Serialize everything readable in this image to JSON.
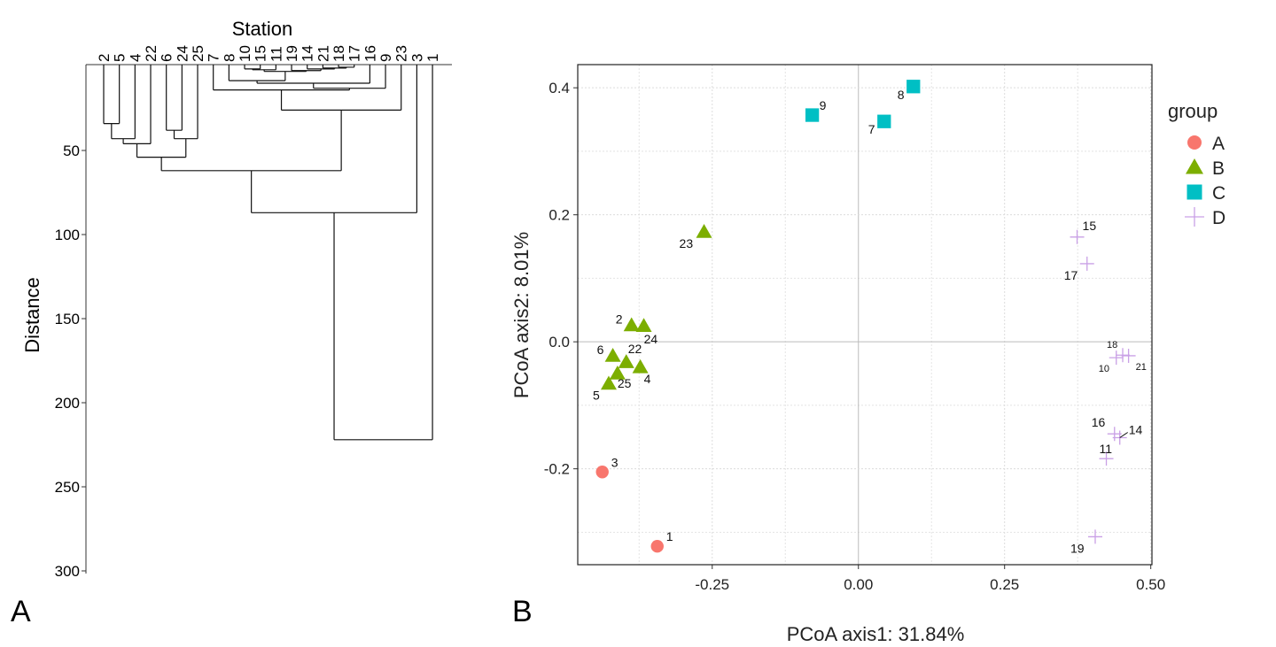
{
  "panels": {
    "left_label": "A",
    "right_label": "B"
  },
  "chart_data": [
    {
      "type": "dendrogram",
      "title": "Station",
      "ylabel": "Distance",
      "ylim": [
        0,
        300
      ],
      "yticks": [
        "50",
        "100",
        "150",
        "200",
        "250",
        "300"
      ],
      "ytick_values": [
        50,
        100,
        150,
        200,
        250,
        300
      ],
      "leaves": [
        "2",
        "5",
        "4",
        "22",
        "6",
        "24",
        "25",
        "7",
        "8",
        "10",
        "15",
        "11",
        "19",
        "14",
        "21",
        "18",
        "17",
        "16",
        "9",
        "23",
        "3",
        "1"
      ],
      "tree": {
        "h": 222,
        "c": [
          {
            "h": 87,
            "c": [
              {
                "h": 62,
                "c": [
                  {
                    "h": 54,
                    "c": [
                      {
                        "h": 46,
                        "c": [
                          {
                            "h": 43,
                            "c": [
                              {
                                "h": 34,
                                "c": [
                                  "2",
                                  "5"
                                ]
                              },
                              "4"
                            ]
                          },
                          "22"
                        ]
                      },
                      {
                        "h": 43,
                        "c": [
                          {
                            "h": 38,
                            "c": [
                              "6",
                              "24"
                            ]
                          },
                          "25"
                        ]
                      }
                    ]
                  },
                  {
                    "h": 26,
                    "c": [
                      {
                        "h": 14,
                        "c": [
                          "7",
                          {
                            "h": 13,
                            "c": [
                              {
                                "h": 10,
                                "c": [
                                  {
                                    "h": 8.5,
                                    "c": [
                                      "8",
                                      {
                                        "h": 3,
                                        "c": [
                                          {
                                            "h": 2,
                                            "c": [
                                              {
                                                "h": 1.5,
                                                "c": [
                                                  "10",
                                                  "15"
                                                ]
                                              },
                                              "11"
                                            ]
                                          },
                                          {
                                            "h": 2.5,
                                            "c": [
                                              "19",
                                              {
                                                "h": 1.5,
                                                "c": [
                                                  "14",
                                                  {
                                                    "h": 1,
                                                    "c": [
                                                      "21",
                                                      {
                                                        "h": 0.5,
                                                        "c": [
                                                          "18",
                                                          "17"
                                                        ]
                                                      }
                                                    ]
                                                  }
                                                ]
                                              }
                                            ]
                                          }
                                        ]
                                      }
                                    ]
                                  },
                                  "16"
                                ]
                              },
                              "9"
                            ]
                          }
                        ]
                      },
                      "23"
                    ]
                  }
                ]
              },
              "3"
            ]
          },
          "1"
        ]
      }
    },
    {
      "type": "scatter",
      "xlabel": "PCoA axis1: 31.84%",
      "ylabel": "PCoA axis2: 8.01%",
      "xlim": [
        -0.48,
        0.502
      ],
      "ylim": [
        -0.351,
        0.4365
      ],
      "xticks": [
        "-0.25",
        "0.00",
        "0.25",
        "0.50"
      ],
      "xtick_values": [
        -0.25,
        0,
        0.25,
        0.5
      ],
      "yticks": [
        "0.4",
        "0.2",
        "0.0",
        "-0.2"
      ],
      "ytick_values": [
        0.4,
        0.2,
        0,
        -0.2
      ],
      "grid": true,
      "legend": {
        "title": "group",
        "placement": "right"
      },
      "groups": [
        {
          "name": "A",
          "shape": "circle",
          "color": "#F8766D"
        },
        {
          "name": "B",
          "shape": "triangle",
          "color": "#7CAE00"
        },
        {
          "name": "C",
          "shape": "square",
          "color": "#00BFC4"
        },
        {
          "name": "D",
          "shape": "plus",
          "color": "#C9A0E6"
        }
      ],
      "points": [
        {
          "label": "1",
          "group": "A",
          "x": -0.344,
          "y": -0.322
        },
        {
          "label": "3",
          "group": "A",
          "x": -0.438,
          "y": -0.205
        },
        {
          "label": "23",
          "group": "B",
          "x": -0.264,
          "y": 0.173
        },
        {
          "label": "2",
          "group": "B",
          "x": -0.388,
          "y": 0.026
        },
        {
          "label": "24",
          "group": "B",
          "x": -0.367,
          "y": 0.025
        },
        {
          "label": "6",
          "group": "B",
          "x": -0.42,
          "y": -0.022
        },
        {
          "label": "22",
          "group": "B",
          "x": -0.397,
          "y": -0.032
        },
        {
          "label": "4",
          "group": "B",
          "x": -0.373,
          "y": -0.04
        },
        {
          "label": "25",
          "group": "B",
          "x": -0.412,
          "y": -0.05
        },
        {
          "label": "5",
          "group": "B",
          "x": -0.427,
          "y": -0.066
        },
        {
          "label": "9",
          "group": "C",
          "x": -0.079,
          "y": 0.357
        },
        {
          "label": "7",
          "group": "C",
          "x": 0.044,
          "y": 0.347
        },
        {
          "label": "8",
          "group": "C",
          "x": 0.094,
          "y": 0.402
        },
        {
          "label": "15",
          "group": "D",
          "x": 0.374,
          "y": 0.165
        },
        {
          "label": "17",
          "group": "D",
          "x": 0.391,
          "y": 0.123
        },
        {
          "label": "10",
          "group": "D",
          "x": 0.441,
          "y": -0.025
        },
        {
          "label": "18",
          "group": "D",
          "x": 0.452,
          "y": -0.021
        },
        {
          "label": "21",
          "group": "D",
          "x": 0.462,
          "y": -0.022
        },
        {
          "label": "16",
          "group": "D",
          "x": 0.438,
          "y": -0.145
        },
        {
          "label": "14",
          "group": "D",
          "x": 0.447,
          "y": -0.151
        },
        {
          "label": "11",
          "group": "D",
          "x": 0.424,
          "y": -0.184
        },
        {
          "label": "19",
          "group": "D",
          "x": 0.405,
          "y": -0.307
        }
      ]
    }
  ]
}
